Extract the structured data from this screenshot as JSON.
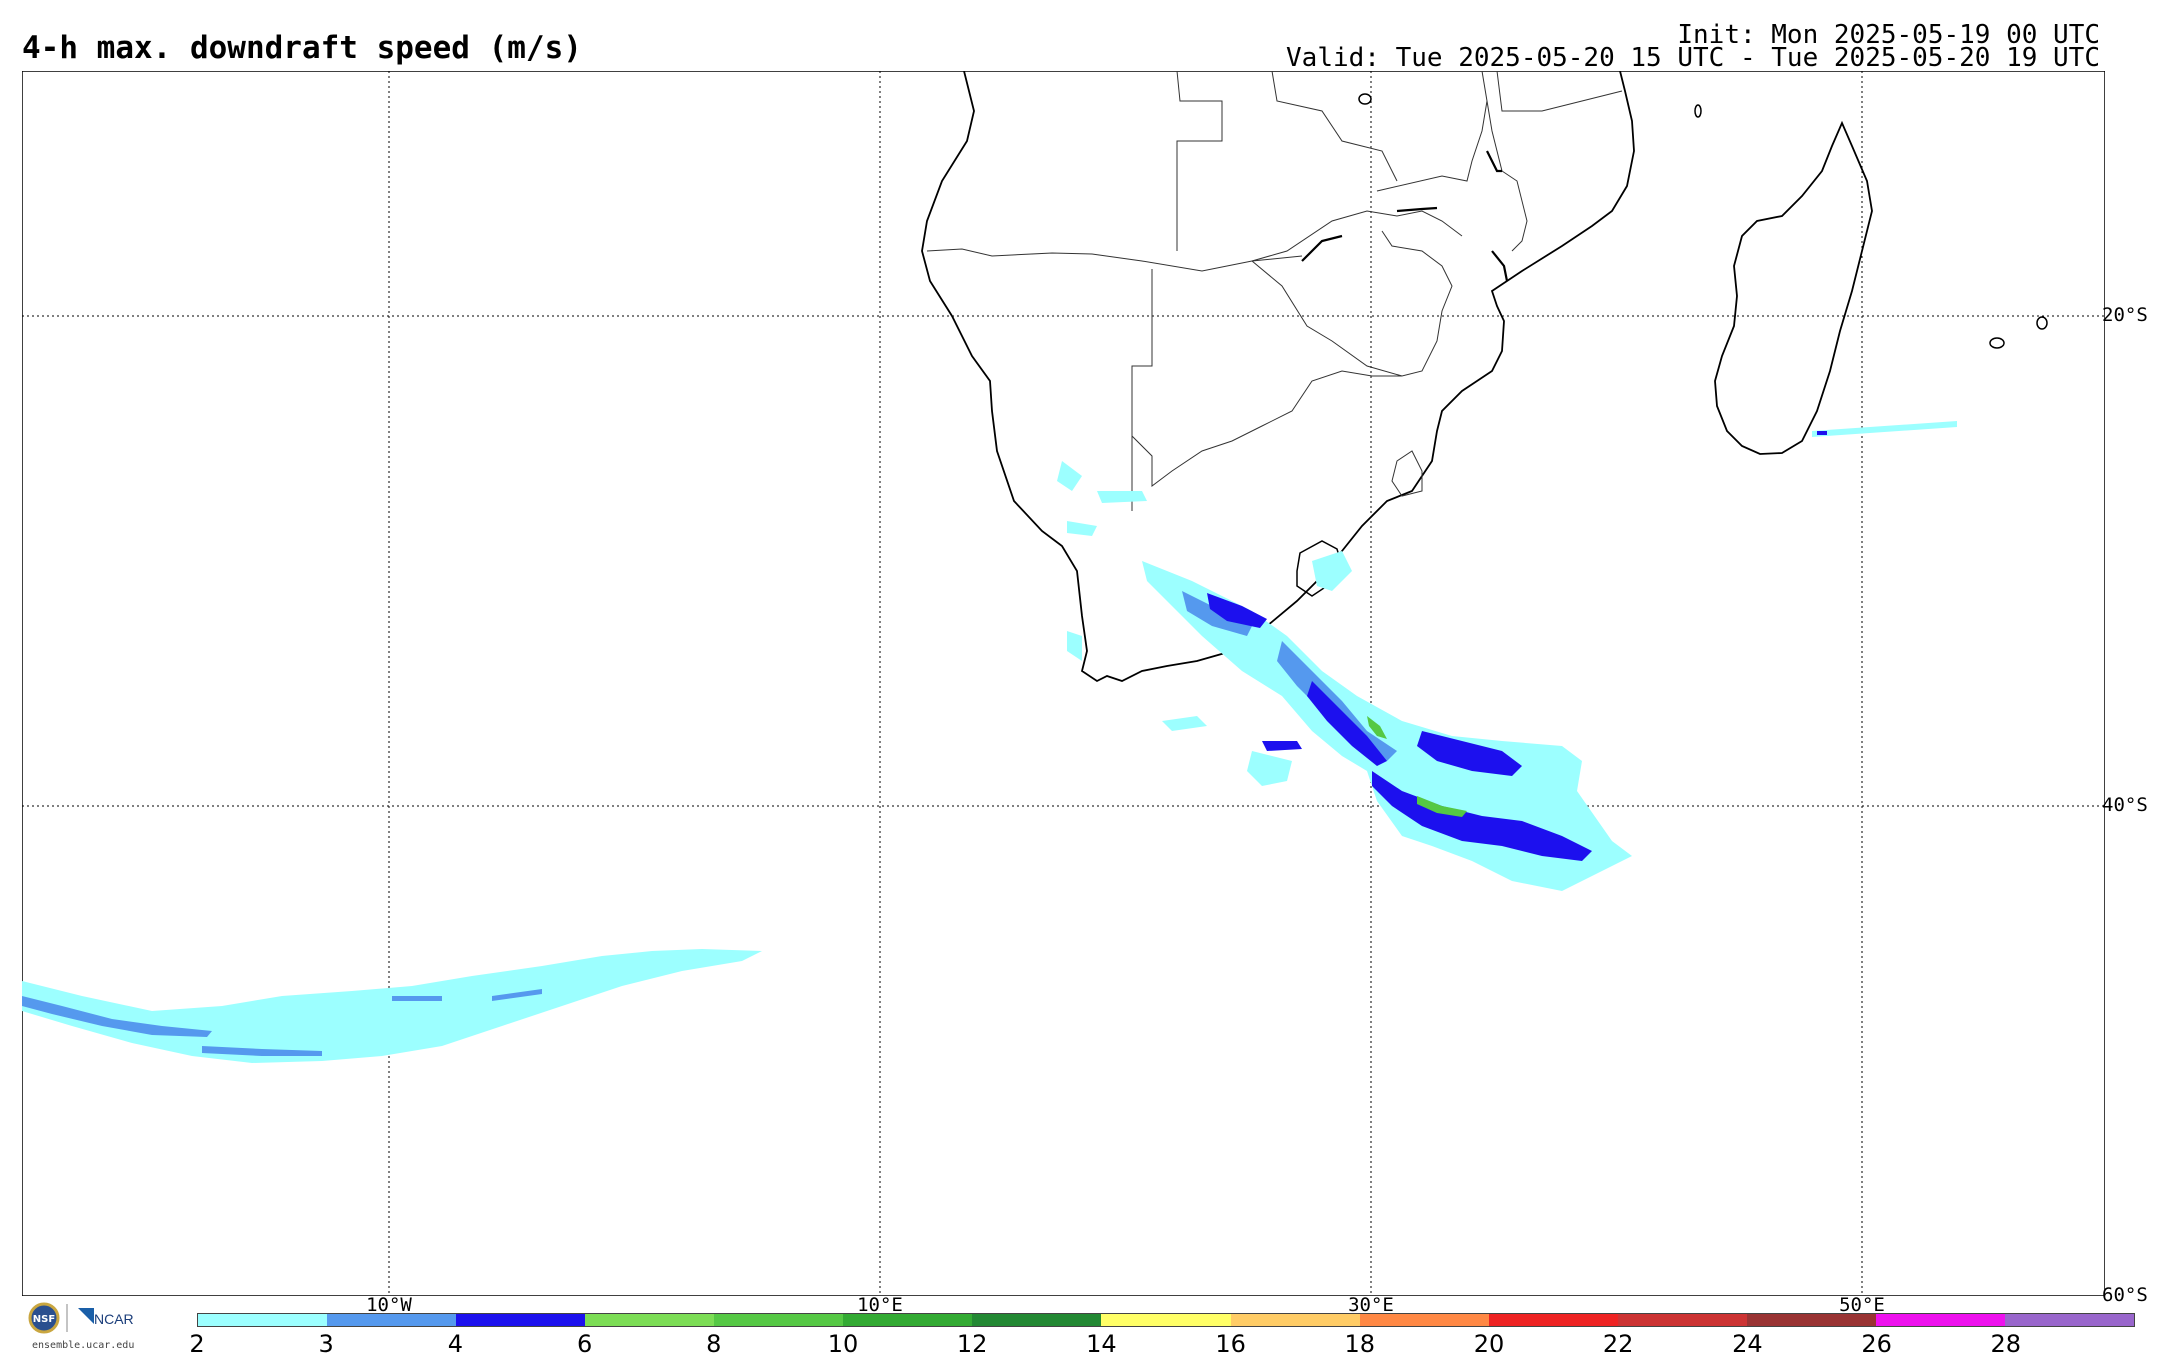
{
  "title": "4-h max. downdraft speed (m/s)",
  "init": "Init: Mon 2025-05-19 00 UTC",
  "valid": "Valid: Tue 2025-05-20 15 UTC - Tue 2025-05-20 19 UTC",
  "lon_labels": [
    "10°W",
    "10°E",
    "30°E",
    "50°E"
  ],
  "lat_labels": [
    "20°S",
    "40°S",
    "60°S"
  ],
  "logo": {
    "nsf": "NSF",
    "ncar": "NCAR",
    "url": "ensemble.ucar.edu"
  },
  "colorbar": {
    "ticks": [
      "2",
      "3",
      "4",
      "6",
      "8",
      "10",
      "12",
      "14",
      "16",
      "18",
      "20",
      "22",
      "24",
      "26",
      "28"
    ],
    "colors": [
      "#9cffff",
      "#5599ee",
      "#1c10ee",
      "#7cdd55",
      "#55c844",
      "#33aa33",
      "#228833",
      "#ffff66",
      "#ffcc66",
      "#ff8844",
      "#ee2222",
      "#cc3333",
      "#993333",
      "#ee11ee",
      "#9966cc"
    ]
  },
  "colors": {
    "light": "#9cffff",
    "medium": "#5599ee",
    "strong": "#1c10ee",
    "green": "#55c844"
  }
}
